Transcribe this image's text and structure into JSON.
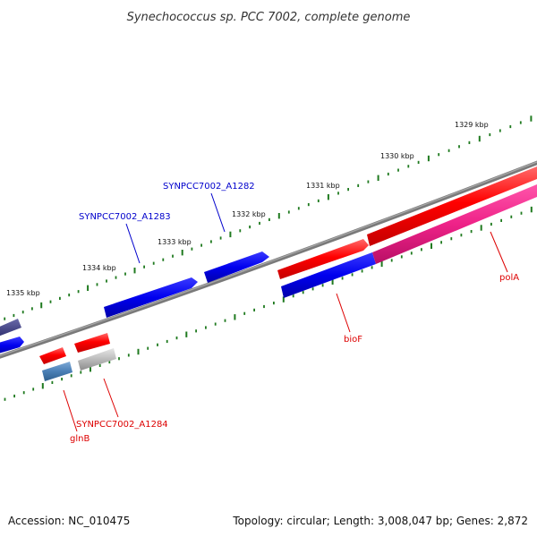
{
  "map": {
    "title": "Synechococcus sp. PCC 7002, complete genome",
    "accession_text": "Accession: NC_010475",
    "summary_text": "Topology: circular; Length: 3,008,047 bp; Genes: 2,872",
    "backbone_color": "#7a7a7a",
    "tick_color": "#1f7a1f",
    "ticks": [
      {
        "label": "1329 kbp"
      },
      {
        "label": "1330 kbp"
      },
      {
        "label": "1331 kbp"
      },
      {
        "label": "1332 kbp"
      },
      {
        "label": "1333 kbp"
      },
      {
        "label": "1334 kbp"
      },
      {
        "label": "1335 kbp"
      }
    ],
    "genes": [
      {
        "name": "polA",
        "strand": "reverse",
        "color": "#ee2288"
      },
      {
        "name": "bioF",
        "strand": "reverse",
        "color": "#0000ee"
      },
      {
        "name": "SYNPCC7002_A1282",
        "strand": "forward",
        "color": "#0000ee"
      },
      {
        "name": "SYNPCC7002_A1283",
        "strand": "forward",
        "color": "#0000ee"
      },
      {
        "name": "SYNPCC7002_A1284",
        "strand": "reverse",
        "color": "#bbbbbb"
      },
      {
        "name": "glnB",
        "strand": "reverse",
        "color": "#4a7fb5"
      }
    ]
  }
}
